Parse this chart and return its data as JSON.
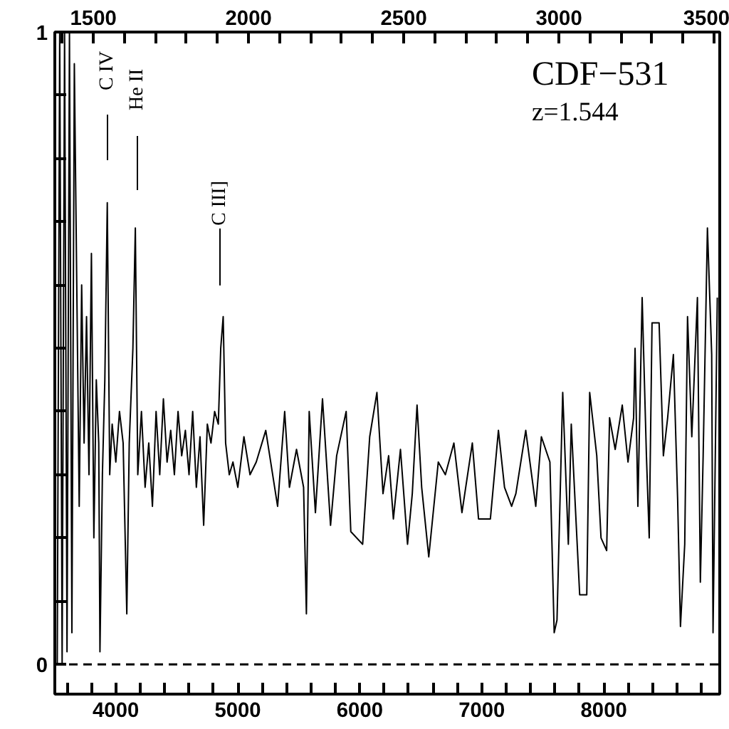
{
  "chart_data": {
    "type": "line",
    "title": "CDF−531",
    "subtitle": "z=1.544",
    "x": [
      3520,
      3540,
      3560,
      3580,
      3600,
      3620,
      3640,
      3660,
      3700,
      3720,
      3740,
      3760,
      3780,
      3800,
      3820,
      3840,
      3860,
      3870,
      3890,
      3910,
      3930,
      3950,
      3970,
      4000,
      4030,
      4060,
      4090,
      4110,
      4140,
      4160,
      4180,
      4210,
      4240,
      4270,
      4300,
      4330,
      4360,
      4390,
      4420,
      4450,
      4480,
      4510,
      4540,
      4570,
      4600,
      4630,
      4660,
      4690,
      4720,
      4750,
      4780,
      4810,
      4840,
      4860,
      4880,
      4900,
      4930,
      4960,
      5000,
      5050,
      5100,
      5151,
      5229,
      5326,
      5384,
      5423,
      5481,
      5539,
      5562,
      5585,
      5636,
      5694,
      5760,
      5810,
      5888,
      5926,
      6023,
      6081,
      6140,
      6190,
      6236,
      6275,
      6333,
      6391,
      6430,
      6469,
      6507,
      6565,
      6643,
      6701,
      6771,
      6837,
      6922,
      6973,
      7070,
      7136,
      7186,
      7244,
      7279,
      7360,
      7442,
      7488,
      7558,
      7593,
      7616,
      7663,
      7709,
      7733,
      7802,
      7860,
      7884,
      7942,
      7977,
      8023,
      8047,
      8093,
      8151,
      8198,
      8244,
      8256,
      8279,
      8314,
      8349,
      8372,
      8395,
      8453,
      8488,
      8523,
      8570,
      8605,
      8628,
      8663,
      8686,
      8721,
      8767,
      8791,
      8814,
      8849,
      8884,
      8895,
      8930
    ],
    "values": [
      0.0,
      1.0,
      0.0,
      1.0,
      0.02,
      1.0,
      0.05,
      0.95,
      0.25,
      0.6,
      0.35,
      0.55,
      0.3,
      0.65,
      0.2,
      0.45,
      0.35,
      0.02,
      0.3,
      0.45,
      0.73,
      0.3,
      0.38,
      0.32,
      0.4,
      0.35,
      0.08,
      0.35,
      0.5,
      0.69,
      0.3,
      0.4,
      0.28,
      0.35,
      0.25,
      0.4,
      0.3,
      0.42,
      0.32,
      0.37,
      0.3,
      0.4,
      0.33,
      0.37,
      0.3,
      0.4,
      0.28,
      0.36,
      0.22,
      0.38,
      0.35,
      0.4,
      0.38,
      0.5,
      0.55,
      0.35,
      0.3,
      0.32,
      0.28,
      0.36,
      0.3,
      0.32,
      0.37,
      0.25,
      0.4,
      0.28,
      0.34,
      0.28,
      0.08,
      0.4,
      0.24,
      0.42,
      0.22,
      0.33,
      0.4,
      0.21,
      0.19,
      0.36,
      0.43,
      0.27,
      0.33,
      0.23,
      0.34,
      0.19,
      0.27,
      0.41,
      0.28,
      0.17,
      0.32,
      0.3,
      0.35,
      0.24,
      0.35,
      0.23,
      0.23,
      0.37,
      0.28,
      0.25,
      0.27,
      0.37,
      0.25,
      0.36,
      0.32,
      0.05,
      0.07,
      0.43,
      0.19,
      0.38,
      0.11,
      0.11,
      0.43,
      0.33,
      0.2,
      0.18,
      0.39,
      0.34,
      0.41,
      0.32,
      0.39,
      0.5,
      0.25,
      0.58,
      0.33,
      0.2,
      0.54,
      0.54,
      0.33,
      0.39,
      0.49,
      0.26,
      0.06,
      0.19,
      0.55,
      0.36,
      0.58,
      0.13,
      0.33,
      0.69,
      0.49,
      0.05,
      0.58
    ],
    "color": "#000000",
    "xlim": [
      3500,
      8950
    ],
    "ylim": [
      -0.047,
      1
    ],
    "xticks": [
      {
        "value": 3600,
        "label": null
      },
      {
        "value": 3800,
        "label": null
      },
      4000,
      {
        "value": 4200,
        "label": null
      },
      {
        "value": 4400,
        "label": null
      },
      {
        "value": 4600,
        "label": null
      },
      {
        "value": 4800,
        "label": null
      },
      5000,
      {
        "value": 5200,
        "label": null
      },
      {
        "value": 5400,
        "label": null
      },
      {
        "value": 5600,
        "label": null
      },
      {
        "value": 5800,
        "label": null
      },
      6000,
      {
        "value": 6200,
        "label": null
      },
      {
        "value": 6400,
        "label": null
      },
      {
        "value": 6600,
        "label": null
      },
      {
        "value": 6800,
        "label": null
      },
      7000,
      {
        "value": 7200,
        "label": null
      },
      {
        "value": 7400,
        "label": null
      },
      {
        "value": 7600,
        "label": null
      },
      {
        "value": 7800,
        "label": null
      },
      8000,
      {
        "value": 8200,
        "label": null
      },
      {
        "value": 8400,
        "label": null
      },
      {
        "value": 8600,
        "label": null
      },
      {
        "value": 8800,
        "label": null
      }
    ],
    "yticks": [
      0,
      {
        "value": 0.1,
        "label": null
      },
      {
        "value": 0.2,
        "label": null
      },
      {
        "value": 0.3,
        "label": null
      },
      {
        "value": 0.4,
        "label": null
      },
      {
        "value": 0.5,
        "label": null
      },
      {
        "value": 0.6,
        "label": null
      },
      {
        "value": 0.7,
        "label": null
      },
      {
        "value": 0.8,
        "label": null
      },
      {
        "value": 0.9,
        "label": null
      },
      1
    ],
    "x2lim": [
      1375.8,
      3518.1
    ],
    "x2ticks": [
      {
        "value": 1400,
        "label": null
      },
      1500,
      {
        "value": 1600,
        "label": null
      },
      {
        "value": 1700,
        "label": null
      },
      {
        "value": 1800,
        "label": null
      },
      {
        "value": 1900,
        "label": null
      },
      2000,
      {
        "value": 2100,
        "label": null
      },
      {
        "value": 2200,
        "label": null
      },
      {
        "value": 2300,
        "label": null
      },
      {
        "value": 2400,
        "label": null
      },
      2500,
      {
        "value": 2600,
        "label": null
      },
      {
        "value": 2700,
        "label": null
      },
      {
        "value": 2800,
        "label": null
      },
      {
        "value": 2900,
        "label": null
      },
      3000,
      {
        "value": 3100,
        "label": null
      },
      {
        "value": 3200,
        "label": null
      },
      {
        "value": 3300,
        "label": null
      },
      {
        "value": 3400,
        "label": null
      },
      3500
    ],
    "ref_lines": [
      {
        "axis": "y",
        "value": 0,
        "line_style": "dashed",
        "color": "#000000"
      }
    ],
    "annotations": [
      "C IV",
      "He II",
      "C III]"
    ],
    "grid": false
  }
}
